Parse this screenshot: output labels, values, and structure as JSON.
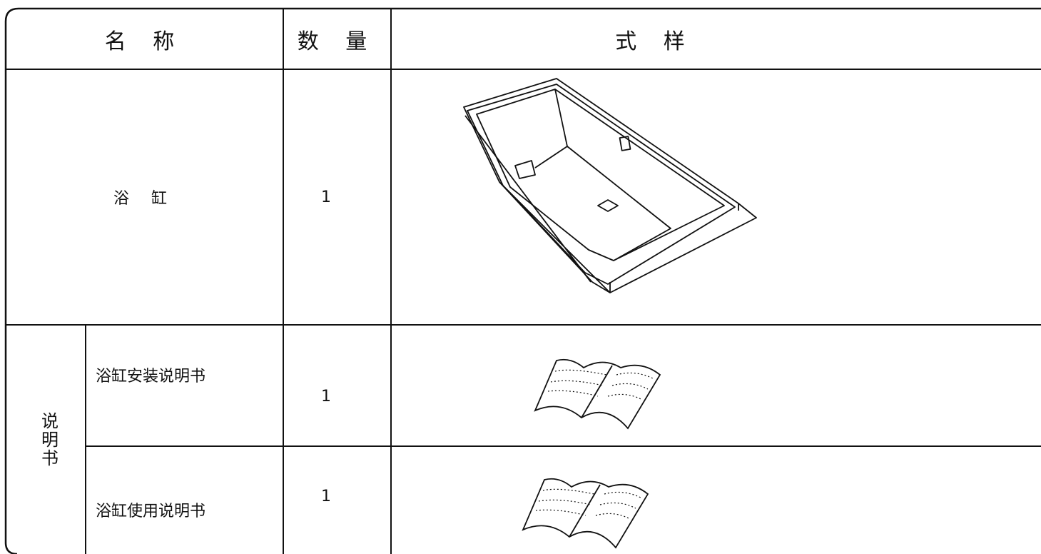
{
  "table": {
    "header": [
      "名 称",
      "数 量",
      "式 样"
    ],
    "rows": [
      {
        "name": "浴 缸",
        "quantity": "1"
      },
      {
        "name": "浴缸安装说明书",
        "quantity": "1"
      },
      {
        "name": "浴缸使用说明书",
        "quantity": "1"
      }
    ],
    "group": "说明书"
  }
}
